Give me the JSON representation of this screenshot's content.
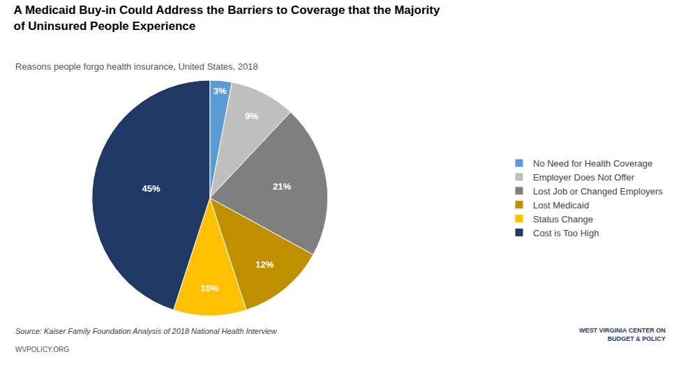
{
  "chart_data": {
    "type": "pie",
    "title": "A Medicaid Buy-in Could Address the Barriers to Coverage that the Majority\nof Uninsured People Experience",
    "subtitle": "Reasons people forgo health insurance, United States, 2018",
    "categories": [
      "No Need for Health Coverage",
      "Employer Does Not Offer",
      "Lost Job or Changed Employers",
      "Lost Medicaid",
      "Status Change",
      "Cost is Too High"
    ],
    "values": [
      3,
      9,
      21,
      12,
      10,
      45
    ],
    "value_labels": [
      "3%",
      "9%",
      "21%",
      "12%",
      "10%",
      "45%"
    ],
    "colors": [
      "#5b9bd5",
      "#bfbfbf",
      "#7f7f7f",
      "#bf8f00",
      "#ffc000",
      "#1f3864"
    ],
    "data_labels": true,
    "legend": "right",
    "annotations": [
      "Source: Kaiser Family Foundation Analysis of 2018 National Health Interview",
      "WVPOLICY.ORG",
      "WEST VIRGINIA CENTER ON\nBUDGET & POLICY"
    ]
  }
}
